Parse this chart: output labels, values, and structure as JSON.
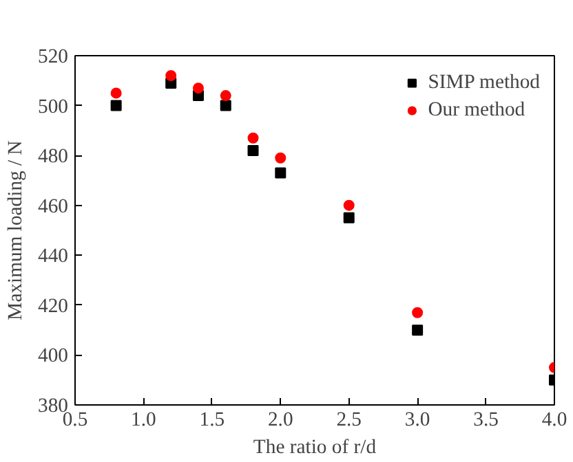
{
  "chart_data": {
    "type": "scatter",
    "xlabel": "The ratio of r/d",
    "ylabel": "Maximum loading / N",
    "x": [
      0.8,
      1.2,
      1.4,
      1.6,
      1.8,
      2.0,
      2.5,
      3.0,
      4.0
    ],
    "series": [
      {
        "name": "SIMP method",
        "color": "#000000",
        "marker": "square",
        "values": [
          500,
          509,
          504,
          500,
          482,
          473,
          455,
          410,
          390
        ]
      },
      {
        "name": "Our method",
        "color": "#ff0000",
        "marker": "circle",
        "values": [
          505,
          512,
          507,
          504,
          487,
          479,
          460,
          417,
          395
        ]
      }
    ],
    "xlim": [
      0.5,
      4.0
    ],
    "xticks": [
      {
        "value": 0.5,
        "label": "0.5"
      },
      {
        "value": 1.0,
        "label": "1.0"
      },
      {
        "value": 1.5,
        "label": "1.5"
      },
      {
        "value": 2.0,
        "label": "2.0"
      },
      {
        "value": 2.5,
        "label": "2.5"
      },
      {
        "value": 3.0,
        "label": "3.0"
      },
      {
        "value": 3.5,
        "label": "3.5"
      },
      {
        "value": 4.0,
        "label": "4.0"
      }
    ],
    "ylim": [
      380,
      520
    ],
    "yticks": [
      380,
      400,
      420,
      440,
      460,
      480,
      500,
      520
    ],
    "grid": false,
    "legend": "top right"
  }
}
